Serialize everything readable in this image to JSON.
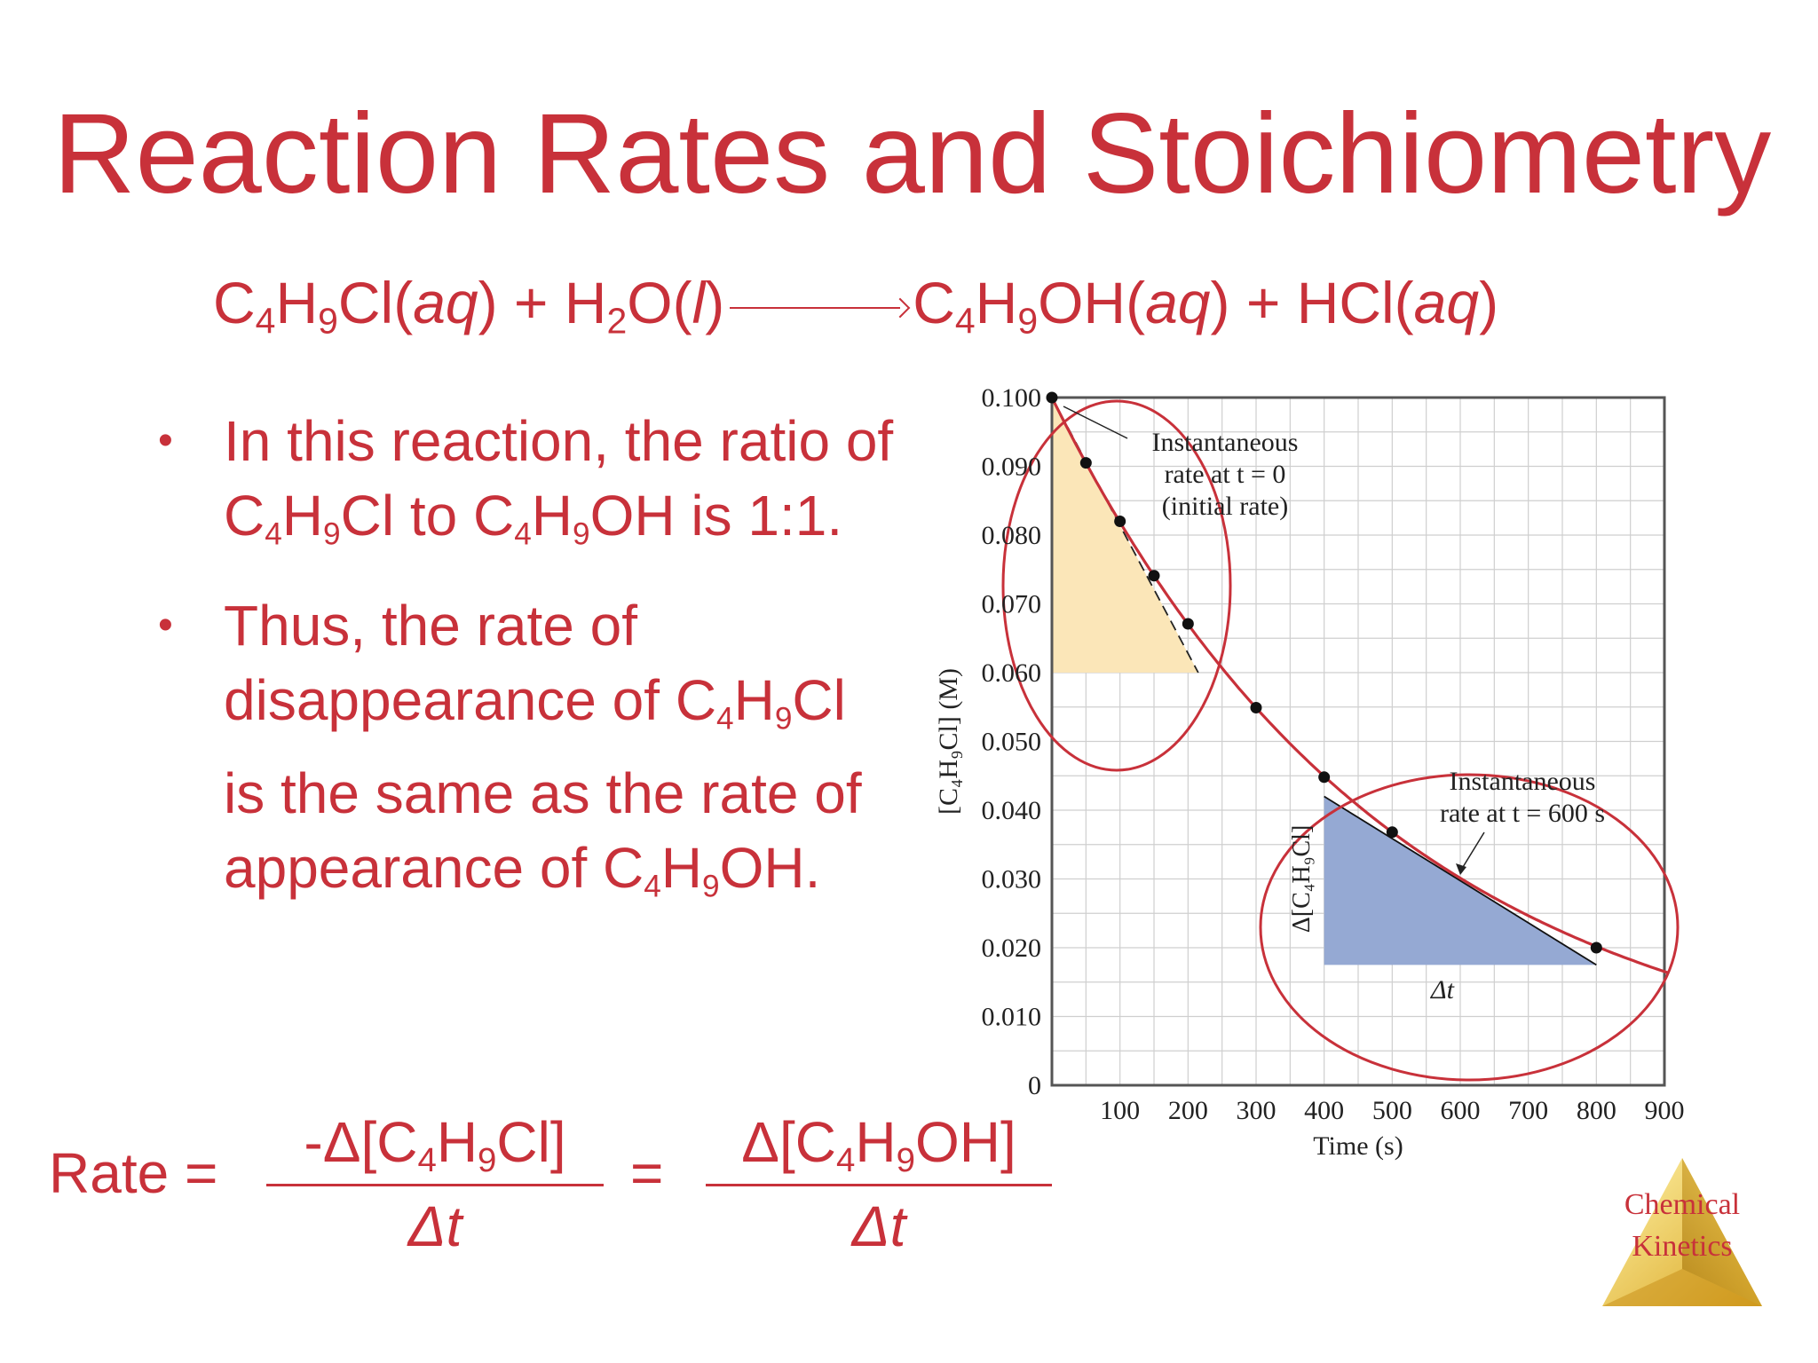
{
  "slide": {
    "title": "Reaction Rates and Stoichiometry"
  },
  "reaction": {
    "r1_a": "C",
    "r1_b": "4",
    "r1_c": "H",
    "r1_d": "9",
    "r1_e": "Cl(",
    "r1_f": "aq",
    "r1_g": ") + H",
    "r2_a": "2",
    "r2_b": "O(",
    "r2_c": "l",
    "r2_d": ")",
    "p1_a": "C",
    "p1_b": "4",
    "p1_c": "H",
    "p1_d": "9",
    "p1_e": "OH(",
    "p1_f": "aq",
    "p1_g": ") + HCl(",
    "p1_h": "aq",
    "p1_i": ")"
  },
  "bullets": {
    "b1": {
      "t1": "In this reaction, the ratio of C",
      "s1": "4",
      "t2": "H",
      "s2": "9",
      "t3": "Cl to C",
      "s3": "4",
      "t4": "H",
      "s4": "9",
      "t5": "OH is 1:1."
    },
    "b2": {
      "t1": "Thus, the rate of disappearance of C",
      "s1": "4",
      "t2": "H",
      "s2": "9",
      "t3": "Cl is the same as the rate of appearance of C",
      "s3": "4",
      "t4": "H",
      "s4": "9",
      "t5": "OH."
    }
  },
  "rate_equation": {
    "label": "Rate =",
    "num1_a": "-Δ[C",
    "num1_b": "4",
    "num1_c": "H",
    "num1_d": "9",
    "num1_e": "Cl]",
    "den1": "Δt",
    "equals": "=",
    "num2_a": "Δ[C",
    "num2_b": "4",
    "num2_c": "H",
    "num2_d": "9",
    "num2_e": "OH]",
    "den2": "Δt"
  },
  "logo": {
    "line1": "Chemical",
    "line2": "Kinetics"
  },
  "colors": {
    "accent": "#c8313a",
    "tangent_fill_1": "#fbe6b8",
    "tangent_fill_2": "#95a9d3",
    "grid": "#cfcfcf"
  },
  "chart_data": {
    "type": "line",
    "xlabel": "Time (s)",
    "ylabel": "[C₄H₉Cl] (M)",
    "xlim": [
      0,
      900
    ],
    "ylim": [
      0,
      0.1
    ],
    "x_ticks": [
      "100",
      "200",
      "300",
      "400",
      "500",
      "600",
      "700",
      "800",
      "900"
    ],
    "y_ticks": [
      "0",
      "0.010",
      "0.020",
      "0.030",
      "0.040",
      "0.050",
      "0.060",
      "0.070",
      "0.080",
      "0.090",
      "0.100"
    ],
    "grid": true,
    "points": [
      {
        "x": 0,
        "y": 0.1
      },
      {
        "x": 50,
        "y": 0.0905
      },
      {
        "x": 100,
        "y": 0.082
      },
      {
        "x": 150,
        "y": 0.0741
      },
      {
        "x": 200,
        "y": 0.0671
      },
      {
        "x": 300,
        "y": 0.0549
      },
      {
        "x": 400,
        "y": 0.0448
      },
      {
        "x": 500,
        "y": 0.0368
      },
      {
        "x": 800,
        "y": 0.02
      }
    ],
    "tangent_initial": {
      "x1": 0,
      "y1": 0.1,
      "x2": 215,
      "y2": 0.06
    },
    "tangent_600": {
      "x1": 400,
      "y1": 0.042,
      "x2": 800,
      "y2": 0.0175
    },
    "annotations": {
      "a1_line1": "Instantaneous",
      "a1_line2": "rate at t = 0",
      "a1_line3": "(initial rate)",
      "a2_line1": "Instantaneous",
      "a2_line2": "rate at t = 600 s",
      "delta_y": "Δ[C₄H₉Cl]",
      "delta_t": "Δt"
    }
  }
}
